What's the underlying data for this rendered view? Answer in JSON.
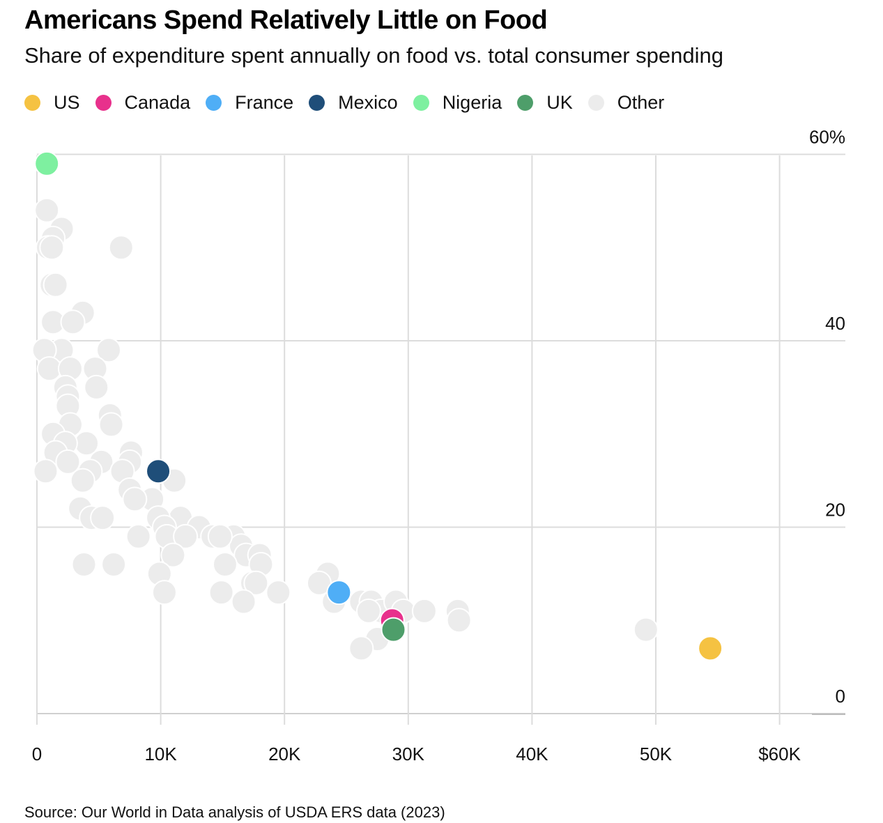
{
  "header": {
    "title": "Americans Spend Relatively Little on Food",
    "subtitle": "Share of expenditure spent annually on food vs. total consumer spending"
  },
  "legend": [
    {
      "label": "US",
      "color": "#F5C242"
    },
    {
      "label": "Canada",
      "color": "#E8318C"
    },
    {
      "label": "France",
      "color": "#4FAEF6"
    },
    {
      "label": "Mexico",
      "color": "#1F4E79"
    },
    {
      "label": "Nigeria",
      "color": "#7EF0A0"
    },
    {
      "label": "UK",
      "color": "#4E9E6A"
    },
    {
      "label": "Other",
      "color": "#ECECEC"
    }
  ],
  "footer": {
    "source": "Source: Our World in Data analysis of USDA ERS data (2023)"
  },
  "chart_data": {
    "type": "scatter",
    "title": "Americans Spend Relatively Little on Food",
    "subtitle": "Share of expenditure spent annually on food vs. total consumer spending",
    "xlabel": "",
    "ylabel": "",
    "xlim": [
      0,
      65000
    ],
    "ylim": [
      0,
      60
    ],
    "x_ticks": [
      {
        "value": 0,
        "label": "0"
      },
      {
        "value": 10000,
        "label": "10K"
      },
      {
        "value": 20000,
        "label": "20K"
      },
      {
        "value": 30000,
        "label": "30K"
      },
      {
        "value": 40000,
        "label": "40K"
      },
      {
        "value": 50000,
        "label": "50K"
      },
      {
        "value": 60000,
        "label": "$60K"
      }
    ],
    "y_ticks": [
      {
        "value": 60,
        "label": "60%"
      },
      {
        "value": 40,
        "label": "40"
      },
      {
        "value": 20,
        "label": "20"
      },
      {
        "value": 0,
        "label": "0"
      }
    ],
    "grid": true,
    "legend_position": "top-left",
    "series": [
      {
        "name": "Other",
        "color": "#ECECEC",
        "points": [
          [
            800,
            54
          ],
          [
            2000,
            52
          ],
          [
            1300,
            51
          ],
          [
            900,
            50
          ],
          [
            1200,
            50
          ],
          [
            6800,
            50
          ],
          [
            1200,
            46
          ],
          [
            1500,
            46
          ],
          [
            3700,
            43
          ],
          [
            1300,
            42
          ],
          [
            2900,
            42
          ],
          [
            2000,
            39
          ],
          [
            5800,
            39
          ],
          [
            600,
            39
          ],
          [
            1000,
            37
          ],
          [
            2700,
            37
          ],
          [
            4700,
            37
          ],
          [
            2300,
            35
          ],
          [
            2500,
            34
          ],
          [
            4800,
            35
          ],
          [
            2500,
            33
          ],
          [
            2700,
            31
          ],
          [
            5900,
            32
          ],
          [
            6000,
            31
          ],
          [
            1300,
            30
          ],
          [
            4000,
            29
          ],
          [
            2300,
            29
          ],
          [
            1500,
            28
          ],
          [
            7600,
            28
          ],
          [
            2500,
            27
          ],
          [
            5200,
            27
          ],
          [
            7500,
            27
          ],
          [
            700,
            26
          ],
          [
            4300,
            26
          ],
          [
            6900,
            26
          ],
          [
            3700,
            25
          ],
          [
            11100,
            25
          ],
          [
            7500,
            24
          ],
          [
            9300,
            23
          ],
          [
            7900,
            23
          ],
          [
            3500,
            22
          ],
          [
            4400,
            21
          ],
          [
            11600,
            21
          ],
          [
            5300,
            21
          ],
          [
            9800,
            21
          ],
          [
            13100,
            20
          ],
          [
            10300,
            20
          ],
          [
            14200,
            19
          ],
          [
            15900,
            19
          ],
          [
            16500,
            18
          ],
          [
            10500,
            19
          ],
          [
            12000,
            19
          ],
          [
            14800,
            19
          ],
          [
            8200,
            19
          ],
          [
            11000,
            17
          ],
          [
            16900,
            17
          ],
          [
            18000,
            17
          ],
          [
            3800,
            16
          ],
          [
            6200,
            16
          ],
          [
            15200,
            16
          ],
          [
            18100,
            16
          ],
          [
            9900,
            15
          ],
          [
            17400,
            14
          ],
          [
            23500,
            15
          ],
          [
            22800,
            14
          ],
          [
            14900,
            13
          ],
          [
            10300,
            13
          ],
          [
            17700,
            14
          ],
          [
            19500,
            13
          ],
          [
            16700,
            12
          ],
          [
            24000,
            12
          ],
          [
            26200,
            12
          ],
          [
            27000,
            12
          ],
          [
            27800,
            11
          ],
          [
            29000,
            12
          ],
          [
            29600,
            11
          ],
          [
            31300,
            11
          ],
          [
            34000,
            11
          ],
          [
            26800,
            11
          ],
          [
            34100,
            10
          ],
          [
            27500,
            8
          ],
          [
            26200,
            7
          ],
          [
            49200,
            9
          ]
        ]
      },
      {
        "name": "US",
        "color": "#F5C242",
        "points": [
          [
            54400,
            7
          ]
        ]
      },
      {
        "name": "Canada",
        "color": "#E8318C",
        "points": [
          [
            28700,
            10
          ]
        ]
      },
      {
        "name": "France",
        "color": "#4FAEF6",
        "points": [
          [
            24400,
            13
          ]
        ]
      },
      {
        "name": "Mexico",
        "color": "#1F4E79",
        "points": [
          [
            9800,
            26
          ]
        ]
      },
      {
        "name": "Nigeria",
        "color": "#7EF0A0",
        "points": [
          [
            800,
            59
          ]
        ]
      },
      {
        "name": "UK",
        "color": "#4E9E6A",
        "points": [
          [
            28800,
            9
          ]
        ]
      }
    ]
  }
}
